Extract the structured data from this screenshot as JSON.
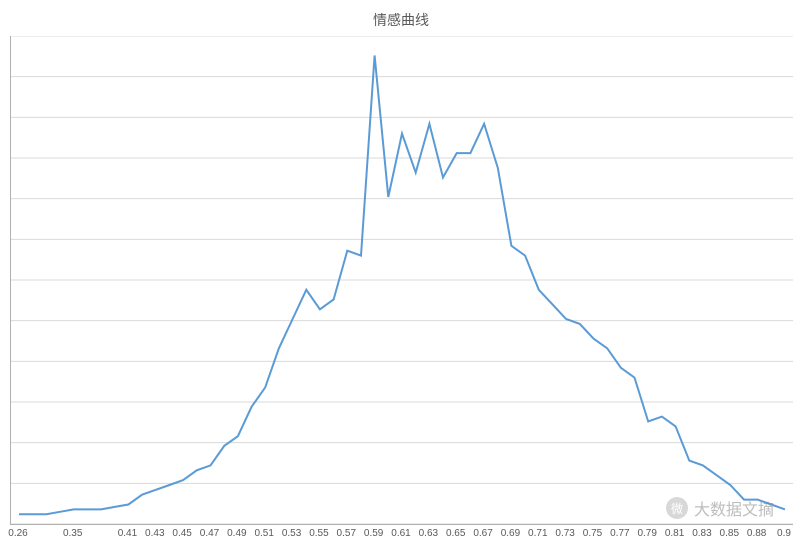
{
  "chart": {
    "type": "line",
    "title": "情感曲线",
    "title_fontsize": 14,
    "title_color": "#595959",
    "background_color": "#ffffff",
    "grid_color": "#d9d9d9",
    "axis_color": "#b0b0b0",
    "line_color": "#5b9bd5",
    "line_width": 2,
    "label_fontsize": 10,
    "label_color": "#595959",
    "ylim": [
      0,
      100
    ],
    "y_gridlines": [
      0,
      8.33,
      16.67,
      25,
      33.33,
      41.67,
      50,
      58.33,
      66.67,
      75,
      83.33,
      91.67,
      100
    ],
    "x_labels": [
      "0.26",
      "0.35",
      "0.41",
      "0.43",
      "0.45",
      "0.47",
      "0.49",
      "0.51",
      "0.53",
      "0.55",
      "0.57",
      "0.59",
      "0.61",
      "0.63",
      "0.65",
      "0.67",
      "0.69",
      "0.71",
      "0.73",
      "0.75",
      "0.77",
      "0.79",
      "0.81",
      "0.83",
      "0.85",
      "0.88",
      "0.9"
    ],
    "x_label_indices": [
      0,
      4,
      8,
      10,
      12,
      14,
      16,
      18,
      20,
      22,
      24,
      26,
      28,
      30,
      32,
      34,
      36,
      38,
      40,
      42,
      44,
      46,
      48,
      50,
      52,
      54,
      56
    ],
    "values": [
      2,
      2,
      2,
      2.5,
      3,
      3,
      3,
      3.5,
      4,
      6,
      7,
      8,
      9,
      11,
      12,
      16,
      18,
      24,
      28,
      36,
      42,
      48,
      44,
      46,
      56,
      55,
      96,
      67,
      80,
      72,
      82,
      71,
      76,
      76,
      82,
      73,
      57,
      55,
      48,
      45,
      42,
      41,
      38,
      36,
      32,
      30,
      21,
      22,
      20,
      13,
      12,
      10,
      8,
      5,
      5,
      4,
      3
    ],
    "n_points": 57
  },
  "watermark": {
    "text": "大数据文摘",
    "icon_label": "微"
  }
}
